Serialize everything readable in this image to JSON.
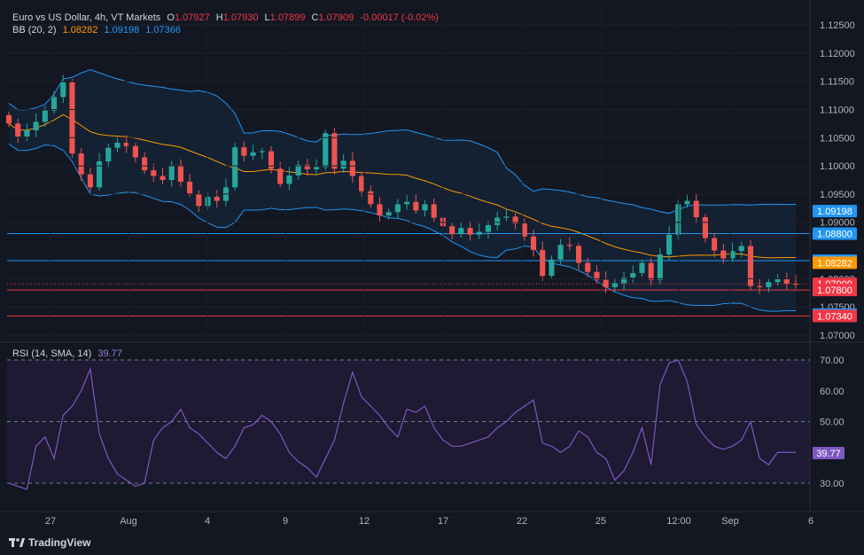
{
  "header": {
    "symbol": "Euro vs US Dollar, 4h, VT Markets",
    "open_label": "O",
    "open": "1.07927",
    "high_label": "H",
    "high": "1.07930",
    "low_label": "L",
    "low": "1.07899",
    "close_label": "C",
    "close": "1.07909",
    "change": "-0.00017 (-0.02%)"
  },
  "bb_legend": {
    "name": "BB (20, 2)",
    "mid": "1.08282",
    "upper": "1.09198",
    "lower": "1.07366"
  },
  "rsi_legend": {
    "name": "RSI (14, SMA, 14)",
    "value": "39.77"
  },
  "brand": "TradingView",
  "colors": {
    "background": "#131722",
    "up": "#26a69a",
    "down": "#ef5350",
    "bb_band": "#2196f3",
    "bb_mid": "#ff9800",
    "rsi": "#7e57c2"
  },
  "chart_data": [
    {
      "type": "candlestick",
      "title": "Euro vs US Dollar, 4h, VT Markets",
      "price_axis": {
        "min": 1.07,
        "max": 1.125,
        "ticks": [
          "1.12500",
          "1.12000",
          "1.11500",
          "1.11000",
          "1.10500",
          "1.10000",
          "1.09500",
          "1.09000",
          "1.08000",
          "1.07500",
          "1.07000"
        ]
      },
      "time_axis": {
        "labels": [
          "27",
          "Aug",
          "4",
          "9",
          "12",
          "17",
          "22",
          "25",
          "12:00",
          "Sep",
          "6"
        ]
      },
      "close": [
        1.1075,
        1.1052,
        1.1063,
        1.1078,
        1.1098,
        1.1122,
        1.1148,
        1.1022,
        1.0985,
        1.0962,
        1.1008,
        1.1032,
        1.1041,
        1.1035,
        1.1015,
        1.0992,
        1.0982,
        1.0975,
        1.1001,
        1.0972,
        1.0951,
        1.0929,
        1.0945,
        1.0938,
        1.0962,
        1.1033,
        1.1018,
        1.1024,
        1.1026,
        1.0995,
        1.0968,
        1.0983,
        1.1002,
        1.0994,
        1.0998,
        1.1058,
        1.0995,
        1.1009,
        1.0982,
        1.0955,
        1.0932,
        1.0912,
        1.0918,
        1.0932,
        1.0936,
        1.0921,
        1.0932,
        1.0908,
        1.0893,
        1.0879,
        1.089,
        1.0878,
        1.0883,
        1.0895,
        1.0908,
        1.091,
        1.0898,
        1.0875,
        1.0851,
        1.0805,
        1.0834,
        1.086,
        1.0858,
        1.0828,
        1.0812,
        1.0798,
        1.0785,
        1.0792,
        1.0802,
        1.081,
        1.0828,
        1.0798,
        1.0843,
        1.0878,
        1.0932,
        1.0938,
        1.0909,
        1.0872,
        1.085,
        1.0836,
        1.0849,
        1.0858,
        1.0787,
        1.0785,
        1.0794,
        1.0799,
        1.0791,
        1.079
      ],
      "bollinger_bands": {
        "period": 20,
        "stddev": 2,
        "upper_last": 1.09198,
        "middle_last": 1.08282,
        "lower_last": 1.07366
      },
      "horizontal_levels": [
        {
          "price": 1.088,
          "color": "#2196f3",
          "label": "1.08800"
        },
        {
          "price": 1.0832,
          "color": "#2196f3",
          "label": "1.08320"
        },
        {
          "price": 1.078,
          "color": "#f23645",
          "label": "1.07800"
        },
        {
          "price": 1.0734,
          "color": "#f23645",
          "label": "1.07340"
        }
      ],
      "price_tags": [
        {
          "price": 1.09198,
          "label": "1.09198",
          "color": "#2196f3"
        },
        {
          "price": 1.088,
          "label": "1.08800",
          "color": "#2196f3"
        },
        {
          "price": 1.0832,
          "label": "1.08320",
          "color": "#2196f3"
        },
        {
          "price": 1.08282,
          "label": "1.08282",
          "color": "#ff9800"
        },
        {
          "price": 1.07909,
          "label": "1.07909",
          "color": "#f23645"
        },
        {
          "price": 1.078,
          "label": "1.07800",
          "color": "#f23645"
        },
        {
          "price": 1.07366,
          "label": "1.07366",
          "color": "#2196f3"
        },
        {
          "price": 1.0734,
          "label": "1.07340",
          "color": "#f23645"
        }
      ]
    },
    {
      "type": "line",
      "title": "RSI (14, SMA, 14)",
      "ylim": [
        25,
        71
      ],
      "ticks": [
        "70.00",
        "60.00",
        "50.00",
        "40.00",
        "30.00"
      ],
      "levels": [
        70,
        50,
        30
      ],
      "values": [
        30,
        29,
        28,
        42,
        45,
        38,
        52,
        55,
        60,
        67,
        46,
        38,
        33,
        31,
        29,
        30,
        44,
        48,
        50,
        54,
        48,
        46,
        43,
        40,
        38,
        42,
        48,
        49,
        52,
        50,
        46,
        40,
        37,
        35,
        32,
        38,
        44,
        56,
        66,
        58,
        55,
        52,
        48,
        45,
        54,
        53,
        55,
        48,
        44,
        42,
        42,
        43,
        44,
        45,
        48,
        50,
        53,
        55,
        57,
        43,
        42,
        40,
        42,
        47,
        45,
        40,
        38,
        31,
        34,
        40,
        48,
        36,
        62,
        69,
        70,
        63,
        49,
        45,
        42,
        41,
        42,
        44,
        50,
        38,
        36,
        40,
        40,
        40
      ],
      "value_label": "39.77"
    }
  ]
}
